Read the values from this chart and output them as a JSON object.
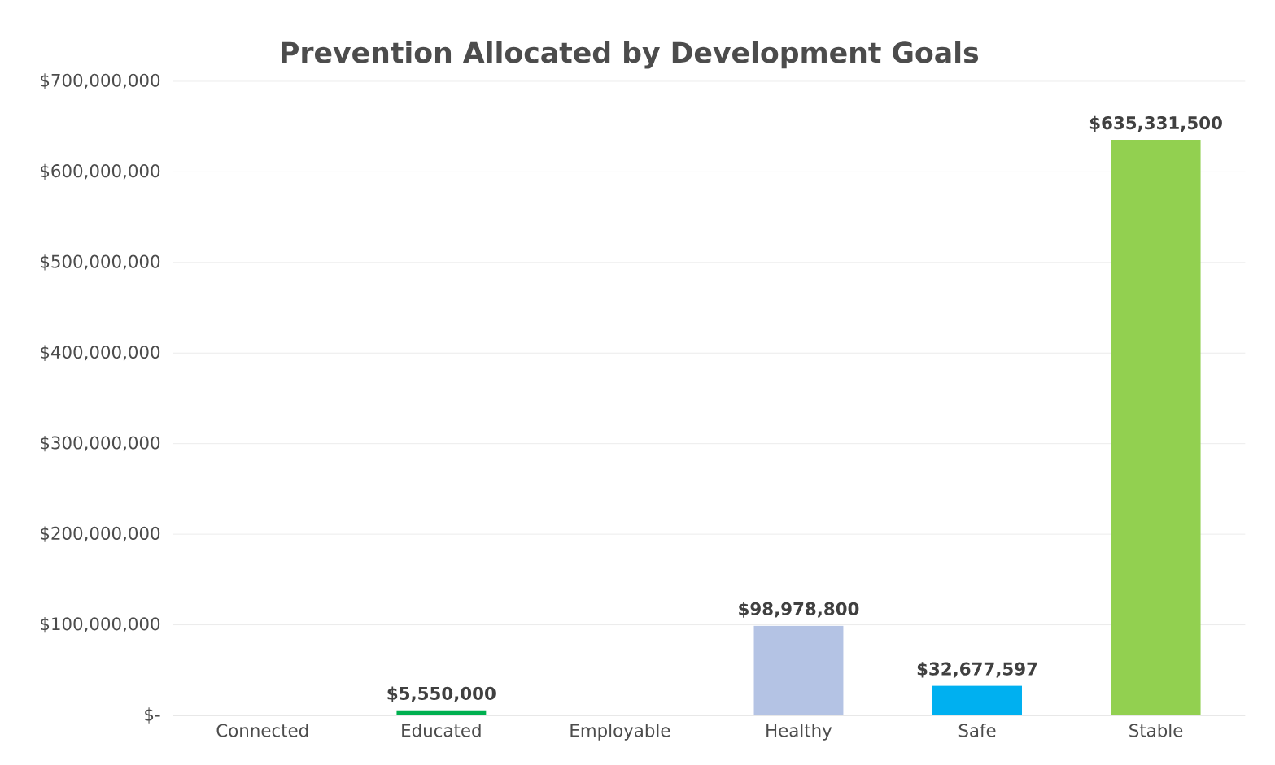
{
  "chart_data": {
    "type": "bar",
    "title": "Prevention Allocated by Development Goals",
    "categories": [
      "Connected",
      "Educated",
      "Employable",
      "Healthy",
      "Safe",
      "Stable"
    ],
    "values": [
      0,
      5550000,
      0,
      98978800,
      32677597,
      635331500
    ],
    "colors": [
      "#4472c4",
      "#00b050",
      "#ed7d31",
      "#b4c3e4",
      "#00b0f0",
      "#92d050"
    ],
    "value_labels": [
      null,
      "$5,550,000",
      null,
      "$98,978,800",
      "$32,677,597",
      "$635,331,500"
    ],
    "ylim": [
      0,
      700000000
    ],
    "yticks": [
      {
        "value": 0,
        "label": "$-"
      },
      {
        "value": 100000000,
        "label": "$100,000,000"
      },
      {
        "value": 200000000,
        "label": "$200,000,000"
      },
      {
        "value": 300000000,
        "label": "$300,000,000"
      },
      {
        "value": 400000000,
        "label": "$400,000,000"
      },
      {
        "value": 500000000,
        "label": "$500,000,000"
      },
      {
        "value": 600000000,
        "label": "$600,000,000"
      },
      {
        "value": 700000000,
        "label": "$700,000,000"
      }
    ],
    "grid": "y"
  }
}
